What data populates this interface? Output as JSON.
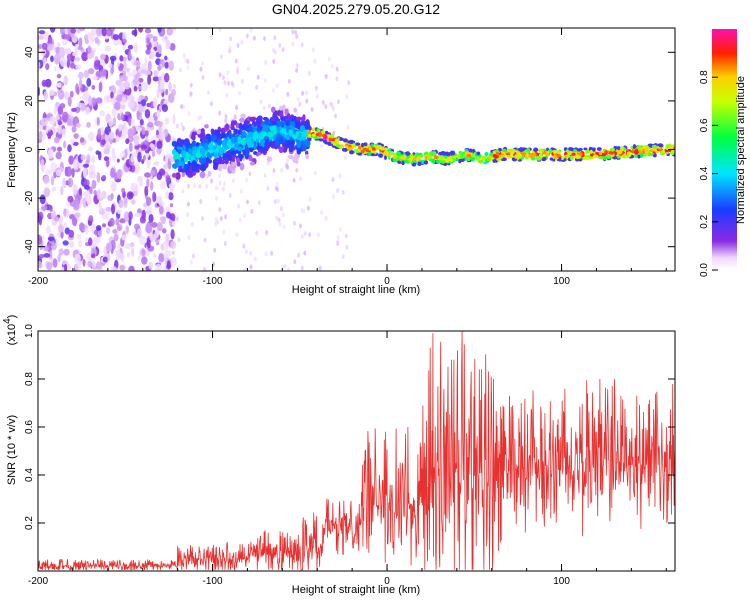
{
  "chart_data": [
    {
      "type": "heatmap",
      "title": "GN04.2025.279.05.20.G12",
      "xlabel": "Height of straight line (km)",
      "ylabel": "Frequency (Hz)",
      "xlim": [
        -200,
        165
      ],
      "ylim": [
        -50,
        50
      ],
      "xticks": [
        "-200",
        "-100",
        "0",
        "100"
      ],
      "yticks": [
        "-40",
        "-20",
        "0",
        "20",
        "40"
      ],
      "colorbar": {
        "label": "Normalized spectral amplitude",
        "range": [
          0,
          1
        ],
        "ticks": [
          "0.0",
          "0.2",
          "0.4",
          "0.6",
          "0.8"
        ],
        "colormap": "rainbow (white → violet → blue → cyan → green → yellow → red → magenta)"
      },
      "features": [
        {
          "x_range": [
            -200,
            -122
          ],
          "frequency_range": [
            -50,
            50
          ],
          "amplitude": "low, scattered noise"
        },
        {
          "x_range": [
            -122,
            -45
          ],
          "frequency_center": 2,
          "frequency_spread": 8,
          "amplitude": "0.3-0.5"
        },
        {
          "x_range": [
            -45,
            165
          ],
          "frequency_center": 0,
          "frequency_spread": 2,
          "amplitude": "0.5-1.0"
        }
      ],
      "ridge": {
        "x": [
          -120,
          -110,
          -100,
          -90,
          -80,
          -70,
          -60,
          -50,
          -42,
          -35,
          -25,
          -15,
          -5,
          5,
          15,
          25,
          35,
          45,
          55,
          65,
          80,
          100,
          120,
          140,
          160
        ],
        "frequency": [
          -3,
          -2,
          0,
          2,
          4,
          6,
          8,
          5,
          7,
          5,
          2,
          0,
          0,
          -3,
          -4,
          -3,
          -4,
          -2,
          -4,
          -2,
          -2,
          -2,
          -2,
          -1,
          0
        ]
      }
    },
    {
      "type": "line",
      "xlabel": "Height of straight line (km)",
      "ylabel": "SNR (10 * v/v)",
      "scale_label": "(x10",
      "scale_exponent": "4",
      "xlim": [
        -200,
        165
      ],
      "ylim": [
        0,
        1.0
      ],
      "xticks": [
        "-200",
        "-100",
        "0",
        "100"
      ],
      "yticks": [
        "0.2",
        "0.4",
        "0.6",
        "0.8",
        "1.0"
      ],
      "color": "#e8302f",
      "segments": [
        {
          "x_range": [
            -200,
            -120
          ],
          "mean": 0.02,
          "max": 0.05
        },
        {
          "x_range": [
            -120,
            -80
          ],
          "mean": 0.05,
          "max": 0.12
        },
        {
          "x_range": [
            -80,
            -50
          ],
          "mean": 0.07,
          "max": 0.17
        },
        {
          "x_range": [
            -50,
            -37
          ],
          "mean": 0.08,
          "max": 0.25
        },
        {
          "x_range": [
            -37,
            -15
          ],
          "mean": 0.18,
          "max": 0.32
        },
        {
          "x_range": [
            -15,
            20
          ],
          "mean": 0.27,
          "max": 0.6
        },
        {
          "x_range": [
            20,
            65
          ],
          "mean": 0.4,
          "max": 1.0
        },
        {
          "x_range": [
            65,
            110
          ],
          "mean": 0.43,
          "max": 0.76
        },
        {
          "x_range": [
            110,
            165
          ],
          "mean": 0.45,
          "max": 0.8
        }
      ],
      "peaks": [
        {
          "x": 43,
          "y": 1.0
        },
        {
          "x": 37,
          "y": 0.88
        },
        {
          "x": 53,
          "y": 0.84
        },
        {
          "x": 61,
          "y": 0.8
        },
        {
          "x": 122,
          "y": 0.8
        },
        {
          "x": 70,
          "y": 0.73
        },
        {
          "x": 143,
          "y": 0.73
        },
        {
          "x": 12,
          "y": 0.6
        },
        {
          "x": 160,
          "y": 0.6
        },
        {
          "x": -70,
          "y": 0.17
        }
      ]
    }
  ]
}
